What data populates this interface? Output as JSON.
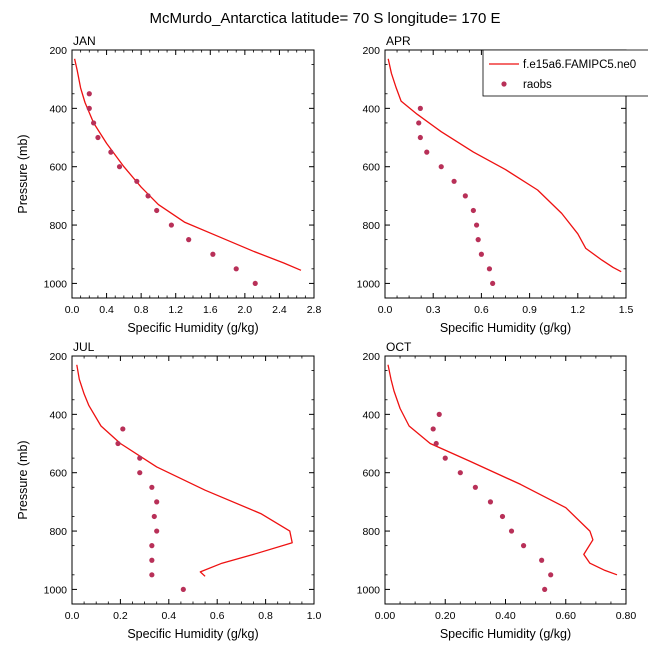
{
  "figure": {
    "title": "McMurdo_Antarctica  latitude= 70 S longitude= 170 E",
    "xlabel": "Specific Humidity (g/kg)",
    "ylabel": "Pressure (mb)"
  },
  "legend": {
    "entries": [
      {
        "label": "f.e15a6.FAMIPC5.ne0",
        "kind": "line",
        "color": "#ee1111"
      },
      {
        "label": "raobs",
        "kind": "marker",
        "color": "#b83058"
      }
    ],
    "placement": "top-right of APR panel"
  },
  "chart_data": [
    {
      "type": "line",
      "title": "JAN",
      "xlabel": "Specific Humidity (g/kg)",
      "ylabel": "Pressure (mb)",
      "xlim": [
        0,
        2.8
      ],
      "ylim": [
        200,
        1050
      ],
      "y_inverted": true,
      "xticks": [
        "0.0",
        "0.4",
        "0.8",
        "1.2",
        "1.6",
        "2.0",
        "2.4",
        "2.8"
      ],
      "yticks": [
        "200",
        "400",
        "600",
        "800",
        "1000"
      ],
      "series": [
        {
          "name": "f.e15a6.FAMIPC5.ne0",
          "kind": "line",
          "color": "#ee1111",
          "points": [
            [
              0.03,
              230
            ],
            [
              0.06,
              270
            ],
            [
              0.1,
              330
            ],
            [
              0.15,
              380
            ],
            [
              0.25,
              450
            ],
            [
              0.4,
              520
            ],
            [
              0.6,
              600
            ],
            [
              0.8,
              670
            ],
            [
              1.0,
              730
            ],
            [
              1.3,
              790
            ],
            [
              1.7,
              840
            ],
            [
              2.1,
              890
            ],
            [
              2.45,
              930
            ],
            [
              2.65,
              955
            ]
          ]
        },
        {
          "name": "raobs",
          "kind": "marker",
          "color": "#b83058",
          "points": [
            [
              0.2,
              350
            ],
            [
              0.2,
              400
            ],
            [
              0.25,
              450
            ],
            [
              0.3,
              500
            ],
            [
              0.45,
              550
            ],
            [
              0.55,
              600
            ],
            [
              0.75,
              650
            ],
            [
              0.88,
              700
            ],
            [
              0.98,
              750
            ],
            [
              1.15,
              800
            ],
            [
              1.35,
              850
            ],
            [
              1.63,
              900
            ],
            [
              1.9,
              950
            ],
            [
              2.12,
              1000
            ]
          ]
        }
      ]
    },
    {
      "type": "line",
      "title": "APR",
      "xlabel": "Specific Humidity (g/kg)",
      "ylabel": "",
      "xlim": [
        0,
        1.5
      ],
      "ylim": [
        200,
        1050
      ],
      "y_inverted": true,
      "xticks": [
        "0.0",
        "0.3",
        "0.6",
        "0.9",
        "1.2",
        "1.5"
      ],
      "yticks": [
        "200",
        "400",
        "600",
        "800",
        "1000"
      ],
      "series": [
        {
          "name": "f.e15a6.FAMIPC5.ne0",
          "kind": "line",
          "color": "#ee1111",
          "points": [
            [
              0.02,
              230
            ],
            [
              0.04,
              280
            ],
            [
              0.07,
              330
            ],
            [
              0.1,
              375
            ],
            [
              0.2,
              420
            ],
            [
              0.35,
              480
            ],
            [
              0.55,
              550
            ],
            [
              0.75,
              610
            ],
            [
              0.95,
              680
            ],
            [
              1.1,
              760
            ],
            [
              1.2,
              830
            ],
            [
              1.25,
              880
            ],
            [
              1.35,
              920
            ],
            [
              1.42,
              945
            ],
            [
              1.47,
              960
            ]
          ]
        },
        {
          "name": "raobs",
          "kind": "marker",
          "color": "#b83058",
          "points": [
            [
              0.22,
              400
            ],
            [
              0.21,
              450
            ],
            [
              0.22,
              500
            ],
            [
              0.26,
              550
            ],
            [
              0.35,
              600
            ],
            [
              0.43,
              650
            ],
            [
              0.5,
              700
            ],
            [
              0.55,
              750
            ],
            [
              0.57,
              800
            ],
            [
              0.58,
              850
            ],
            [
              0.6,
              900
            ],
            [
              0.65,
              950
            ],
            [
              0.67,
              1000
            ]
          ]
        }
      ]
    },
    {
      "type": "line",
      "title": "JUL",
      "xlabel": "Specific Humidity (g/kg)",
      "ylabel": "Pressure (mb)",
      "xlim": [
        0,
        1.0
      ],
      "ylim": [
        200,
        1050
      ],
      "y_inverted": true,
      "xticks": [
        "0.0",
        "0.2",
        "0.4",
        "0.6",
        "0.8",
        "1.0"
      ],
      "yticks": [
        "200",
        "400",
        "600",
        "800",
        "1000"
      ],
      "series": [
        {
          "name": "f.e15a6.FAMIPC5.ne0",
          "kind": "line",
          "color": "#ee1111",
          "points": [
            [
              0.02,
              230
            ],
            [
              0.03,
              280
            ],
            [
              0.05,
              330
            ],
            [
              0.07,
              370
            ],
            [
              0.12,
              440
            ],
            [
              0.2,
              500
            ],
            [
              0.35,
              580
            ],
            [
              0.55,
              660
            ],
            [
              0.78,
              740
            ],
            [
              0.9,
              800
            ],
            [
              0.91,
              840
            ],
            [
              0.75,
              880
            ],
            [
              0.62,
              910
            ],
            [
              0.53,
              940
            ],
            [
              0.55,
              955
            ]
          ]
        },
        {
          "name": "raobs",
          "kind": "marker",
          "color": "#b83058",
          "points": [
            [
              0.21,
              450
            ],
            [
              0.19,
              500
            ],
            [
              0.28,
              550
            ],
            [
              0.28,
              600
            ],
            [
              0.33,
              650
            ],
            [
              0.35,
              700
            ],
            [
              0.34,
              750
            ],
            [
              0.35,
              800
            ],
            [
              0.33,
              850
            ],
            [
              0.33,
              900
            ],
            [
              0.33,
              950
            ],
            [
              0.46,
              1000
            ]
          ]
        }
      ]
    },
    {
      "type": "line",
      "title": "OCT",
      "xlabel": "Specific Humidity (g/kg)",
      "ylabel": "",
      "xlim": [
        0,
        0.8
      ],
      "ylim": [
        200,
        1050
      ],
      "y_inverted": true,
      "xticks": [
        "0.00",
        "0.20",
        "0.40",
        "0.60",
        "0.80"
      ],
      "yticks": [
        "200",
        "400",
        "600",
        "800",
        "1000"
      ],
      "series": [
        {
          "name": "f.e15a6.FAMIPC5.ne0",
          "kind": "line",
          "color": "#ee1111",
          "points": [
            [
              0.01,
              230
            ],
            [
              0.02,
              280
            ],
            [
              0.03,
              320
            ],
            [
              0.05,
              380
            ],
            [
              0.08,
              440
            ],
            [
              0.15,
              500
            ],
            [
              0.28,
              560
            ],
            [
              0.45,
              640
            ],
            [
              0.6,
              720
            ],
            [
              0.68,
              800
            ],
            [
              0.69,
              830
            ],
            [
              0.66,
              880
            ],
            [
              0.68,
              910
            ],
            [
              0.73,
              935
            ],
            [
              0.77,
              950
            ]
          ]
        },
        {
          "name": "raobs",
          "kind": "marker",
          "color": "#b83058",
          "points": [
            [
              0.18,
              400
            ],
            [
              0.16,
              450
            ],
            [
              0.17,
              500
            ],
            [
              0.2,
              550
            ],
            [
              0.25,
              600
            ],
            [
              0.3,
              650
            ],
            [
              0.35,
              700
            ],
            [
              0.39,
              750
            ],
            [
              0.42,
              800
            ],
            [
              0.46,
              850
            ],
            [
              0.52,
              900
            ],
            [
              0.55,
              950
            ],
            [
              0.53,
              1000
            ]
          ]
        }
      ]
    }
  ]
}
